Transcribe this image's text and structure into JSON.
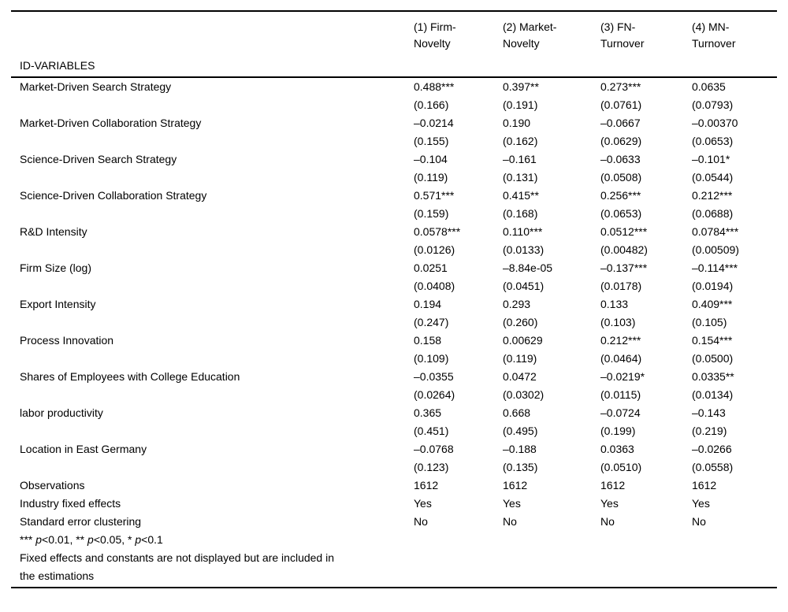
{
  "table": {
    "corner_label": "ID-VARIABLES",
    "columns": [
      "(1) Firm-\nNovelty",
      "(2) Market-\nNovelty",
      "(3) FN-\nTurnover",
      "(4) MN-\nTurnover"
    ],
    "rows": [
      {
        "label": "Market-Driven Search Strategy",
        "coefs": [
          "0.488***",
          "0.397**",
          "0.273***",
          "0.0635"
        ],
        "ses": [
          "(0.166)",
          "(0.191)",
          "(0.0761)",
          "(0.0793)"
        ]
      },
      {
        "label": "Market-Driven Collaboration Strategy",
        "coefs": [
          "–0.0214",
          "0.190",
          "–0.0667",
          "–0.00370"
        ],
        "ses": [
          "(0.155)",
          "(0.162)",
          "(0.0629)",
          "(0.0653)"
        ]
      },
      {
        "label": "Science-Driven Search Strategy",
        "coefs": [
          "–0.104",
          "–0.161",
          "–0.0633",
          "–0.101*"
        ],
        "ses": [
          "(0.119)",
          "(0.131)",
          "(0.0508)",
          "(0.0544)"
        ]
      },
      {
        "label": "Science-Driven Collaboration Strategy",
        "coefs": [
          "0.571***",
          "0.415**",
          "0.256***",
          "0.212***"
        ],
        "ses": [
          "(0.159)",
          "(0.168)",
          "(0.0653)",
          "(0.0688)"
        ]
      },
      {
        "label": "R&D Intensity",
        "coefs": [
          "0.0578***",
          "0.110***",
          "0.0512***",
          "0.0784***"
        ],
        "ses": [
          "(0.0126)",
          "(0.0133)",
          "(0.00482)",
          "(0.00509)"
        ]
      },
      {
        "label": "Firm Size (log)",
        "coefs": [
          "0.0251",
          "–8.84e-05",
          "–0.137***",
          "–0.114***"
        ],
        "ses": [
          "(0.0408)",
          "(0.0451)",
          "(0.0178)",
          "(0.0194)"
        ]
      },
      {
        "label": "Export Intensity",
        "coefs": [
          "0.194",
          "0.293",
          "0.133",
          "0.409***"
        ],
        "ses": [
          "(0.247)",
          "(0.260)",
          "(0.103)",
          "(0.105)"
        ]
      },
      {
        "label": "Process Innovation",
        "coefs": [
          "0.158",
          "0.00629",
          "0.212***",
          "0.154***"
        ],
        "ses": [
          "(0.109)",
          "(0.119)",
          "(0.0464)",
          "(0.0500)"
        ]
      },
      {
        "label": "Shares of Employees with College Education",
        "coefs": [
          "–0.0355",
          "0.0472",
          "–0.0219*",
          "0.0335**"
        ],
        "ses": [
          "(0.0264)",
          "(0.0302)",
          "(0.0115)",
          "(0.0134)"
        ]
      },
      {
        "label": "labor productivity",
        "coefs": [
          "0.365",
          "0.668",
          "–0.0724",
          "–0.143"
        ],
        "ses": [
          "(0.451)",
          "(0.495)",
          "(0.199)",
          "(0.219)"
        ]
      },
      {
        "label": "Location in East Germany",
        "coefs": [
          "–0.0768",
          "–0.188",
          "0.0363",
          "–0.0266"
        ],
        "ses": [
          "(0.123)",
          "(0.135)",
          "(0.0510)",
          "(0.0558)"
        ]
      }
    ],
    "summary_rows": [
      {
        "label": "Observations",
        "values": [
          "1612",
          "1612",
          "1612",
          "1612"
        ]
      },
      {
        "label": "Industry fixed effects",
        "values": [
          "Yes",
          "Yes",
          "Yes",
          "Yes"
        ]
      },
      {
        "label": "Standard error clustering",
        "values": [
          "No",
          "No",
          "No",
          "No"
        ]
      }
    ]
  },
  "notes": {
    "significance": "*** p<0.01, ** p<0.05, * p<0.1",
    "fixed_effects": "Fixed effects and constants are not displayed but are included in\nthe estimations"
  },
  "colors": {
    "text": "#000000",
    "background": "#ffffff",
    "rule": "#000000"
  }
}
